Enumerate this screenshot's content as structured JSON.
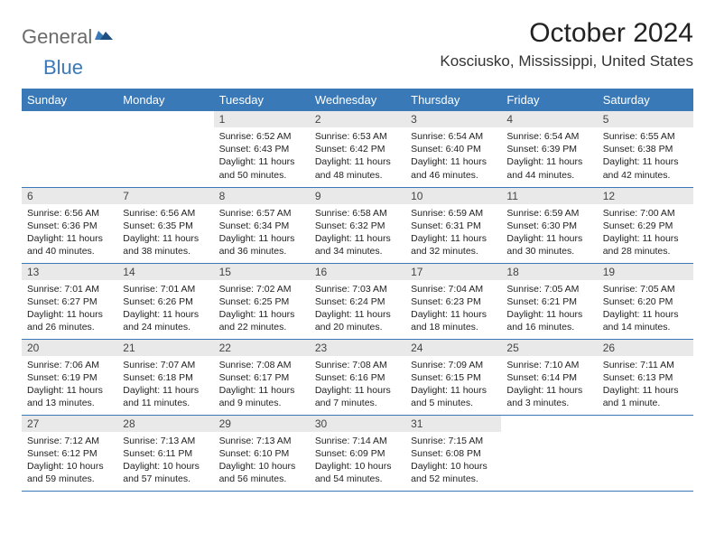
{
  "logo": {
    "text1": "General",
    "text2": "Blue"
  },
  "title": "October 2024",
  "location": "Kosciusko, Mississippi, United States",
  "colors": {
    "header_bg": "#3a79b7",
    "header_text": "#ffffff",
    "daynum_bg": "#e9e9e9",
    "row_border": "#3a79b7",
    "logo_gray": "#6b6b6b",
    "logo_blue": "#3a79b7"
  },
  "weekdays": [
    "Sunday",
    "Monday",
    "Tuesday",
    "Wednesday",
    "Thursday",
    "Friday",
    "Saturday"
  ],
  "weeks": [
    [
      null,
      null,
      {
        "n": "1",
        "sr": "Sunrise: 6:52 AM",
        "ss": "Sunset: 6:43 PM",
        "dl": "Daylight: 11 hours and 50 minutes."
      },
      {
        "n": "2",
        "sr": "Sunrise: 6:53 AM",
        "ss": "Sunset: 6:42 PM",
        "dl": "Daylight: 11 hours and 48 minutes."
      },
      {
        "n": "3",
        "sr": "Sunrise: 6:54 AM",
        "ss": "Sunset: 6:40 PM",
        "dl": "Daylight: 11 hours and 46 minutes."
      },
      {
        "n": "4",
        "sr": "Sunrise: 6:54 AM",
        "ss": "Sunset: 6:39 PM",
        "dl": "Daylight: 11 hours and 44 minutes."
      },
      {
        "n": "5",
        "sr": "Sunrise: 6:55 AM",
        "ss": "Sunset: 6:38 PM",
        "dl": "Daylight: 11 hours and 42 minutes."
      }
    ],
    [
      {
        "n": "6",
        "sr": "Sunrise: 6:56 AM",
        "ss": "Sunset: 6:36 PM",
        "dl": "Daylight: 11 hours and 40 minutes."
      },
      {
        "n": "7",
        "sr": "Sunrise: 6:56 AM",
        "ss": "Sunset: 6:35 PM",
        "dl": "Daylight: 11 hours and 38 minutes."
      },
      {
        "n": "8",
        "sr": "Sunrise: 6:57 AM",
        "ss": "Sunset: 6:34 PM",
        "dl": "Daylight: 11 hours and 36 minutes."
      },
      {
        "n": "9",
        "sr": "Sunrise: 6:58 AM",
        "ss": "Sunset: 6:32 PM",
        "dl": "Daylight: 11 hours and 34 minutes."
      },
      {
        "n": "10",
        "sr": "Sunrise: 6:59 AM",
        "ss": "Sunset: 6:31 PM",
        "dl": "Daylight: 11 hours and 32 minutes."
      },
      {
        "n": "11",
        "sr": "Sunrise: 6:59 AM",
        "ss": "Sunset: 6:30 PM",
        "dl": "Daylight: 11 hours and 30 minutes."
      },
      {
        "n": "12",
        "sr": "Sunrise: 7:00 AM",
        "ss": "Sunset: 6:29 PM",
        "dl": "Daylight: 11 hours and 28 minutes."
      }
    ],
    [
      {
        "n": "13",
        "sr": "Sunrise: 7:01 AM",
        "ss": "Sunset: 6:27 PM",
        "dl": "Daylight: 11 hours and 26 minutes."
      },
      {
        "n": "14",
        "sr": "Sunrise: 7:01 AM",
        "ss": "Sunset: 6:26 PM",
        "dl": "Daylight: 11 hours and 24 minutes."
      },
      {
        "n": "15",
        "sr": "Sunrise: 7:02 AM",
        "ss": "Sunset: 6:25 PM",
        "dl": "Daylight: 11 hours and 22 minutes."
      },
      {
        "n": "16",
        "sr": "Sunrise: 7:03 AM",
        "ss": "Sunset: 6:24 PM",
        "dl": "Daylight: 11 hours and 20 minutes."
      },
      {
        "n": "17",
        "sr": "Sunrise: 7:04 AM",
        "ss": "Sunset: 6:23 PM",
        "dl": "Daylight: 11 hours and 18 minutes."
      },
      {
        "n": "18",
        "sr": "Sunrise: 7:05 AM",
        "ss": "Sunset: 6:21 PM",
        "dl": "Daylight: 11 hours and 16 minutes."
      },
      {
        "n": "19",
        "sr": "Sunrise: 7:05 AM",
        "ss": "Sunset: 6:20 PM",
        "dl": "Daylight: 11 hours and 14 minutes."
      }
    ],
    [
      {
        "n": "20",
        "sr": "Sunrise: 7:06 AM",
        "ss": "Sunset: 6:19 PM",
        "dl": "Daylight: 11 hours and 13 minutes."
      },
      {
        "n": "21",
        "sr": "Sunrise: 7:07 AM",
        "ss": "Sunset: 6:18 PM",
        "dl": "Daylight: 11 hours and 11 minutes."
      },
      {
        "n": "22",
        "sr": "Sunrise: 7:08 AM",
        "ss": "Sunset: 6:17 PM",
        "dl": "Daylight: 11 hours and 9 minutes."
      },
      {
        "n": "23",
        "sr": "Sunrise: 7:08 AM",
        "ss": "Sunset: 6:16 PM",
        "dl": "Daylight: 11 hours and 7 minutes."
      },
      {
        "n": "24",
        "sr": "Sunrise: 7:09 AM",
        "ss": "Sunset: 6:15 PM",
        "dl": "Daylight: 11 hours and 5 minutes."
      },
      {
        "n": "25",
        "sr": "Sunrise: 7:10 AM",
        "ss": "Sunset: 6:14 PM",
        "dl": "Daylight: 11 hours and 3 minutes."
      },
      {
        "n": "26",
        "sr": "Sunrise: 7:11 AM",
        "ss": "Sunset: 6:13 PM",
        "dl": "Daylight: 11 hours and 1 minute."
      }
    ],
    [
      {
        "n": "27",
        "sr": "Sunrise: 7:12 AM",
        "ss": "Sunset: 6:12 PM",
        "dl": "Daylight: 10 hours and 59 minutes."
      },
      {
        "n": "28",
        "sr": "Sunrise: 7:13 AM",
        "ss": "Sunset: 6:11 PM",
        "dl": "Daylight: 10 hours and 57 minutes."
      },
      {
        "n": "29",
        "sr": "Sunrise: 7:13 AM",
        "ss": "Sunset: 6:10 PM",
        "dl": "Daylight: 10 hours and 56 minutes."
      },
      {
        "n": "30",
        "sr": "Sunrise: 7:14 AM",
        "ss": "Sunset: 6:09 PM",
        "dl": "Daylight: 10 hours and 54 minutes."
      },
      {
        "n": "31",
        "sr": "Sunrise: 7:15 AM",
        "ss": "Sunset: 6:08 PM",
        "dl": "Daylight: 10 hours and 52 minutes."
      },
      null,
      null
    ]
  ]
}
